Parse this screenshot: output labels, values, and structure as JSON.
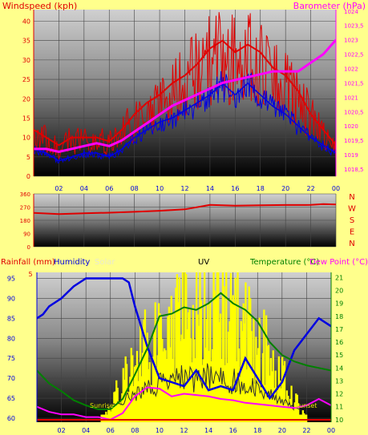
{
  "colors": {
    "background": "#ffff8c",
    "wind_speed": "#e00000",
    "wind_avg": "#0000e0",
    "barometer": "#ff00ff",
    "direction": "#e00000",
    "humidity": "#0000e0",
    "solar": "#ffff00",
    "temperature": "#008000",
    "dew_point": "#ff00ff",
    "rainfall": "#e00000",
    "uv": "#303030"
  },
  "chart_data": [
    {
      "type": "line",
      "title": "",
      "subtitle": "",
      "x_label": "",
      "ylabel_left": "Windspeed (kph)",
      "ylabel_right": "Barometer (hPa)",
      "x_ticks": [
        "02",
        "04",
        "06",
        "08",
        "10",
        "12",
        "14",
        "16",
        "18",
        "20",
        "22",
        "00"
      ],
      "x_range": [
        0,
        24
      ],
      "y_left_ticks": [
        "0",
        "5",
        "10",
        "15",
        "20",
        "25",
        "30",
        "35",
        "40"
      ],
      "y_left_range": [
        0,
        43
      ],
      "y_right_ticks": [
        "1018,5",
        "1019",
        "1019,5",
        "1020",
        "1020,5",
        "1021",
        "1021,5",
        "1022",
        "1022,5",
        "1023",
        "1023,5",
        "1024"
      ],
      "y_right_range": [
        1018.25,
        1024.05
      ],
      "series": [
        {
          "axis": "left",
          "x": [
            0,
            1,
            2,
            3,
            4,
            5,
            6,
            7,
            8,
            9,
            10,
            11,
            12,
            13,
            14,
            15,
            16,
            17,
            18,
            19,
            20,
            21,
            22,
            23,
            24
          ],
          "values": [
            12,
            10,
            8,
            10,
            10,
            10,
            9,
            12,
            16,
            19,
            21,
            24,
            26,
            29,
            33,
            35,
            32,
            34,
            32,
            28,
            26,
            22,
            16,
            12,
            8
          ]
        },
        {
          "axis": "left",
          "x": [
            0,
            1,
            2,
            3,
            4,
            5,
            6,
            7,
            8,
            9,
            10,
            11,
            12,
            13,
            14,
            15,
            16,
            17,
            18,
            19,
            20,
            21,
            22,
            23,
            24
          ],
          "values": [
            7,
            6,
            4,
            5,
            6,
            6,
            5,
            7,
            10,
            12,
            14,
            15,
            17,
            19,
            21,
            24,
            21,
            24,
            21,
            18,
            16,
            13,
            10,
            8,
            6
          ]
        },
        {
          "axis": "right",
          "x": [
            0,
            1,
            2,
            3,
            4,
            5,
            6,
            7,
            8,
            9,
            10,
            11,
            12,
            13,
            14,
            15,
            16,
            17,
            18,
            19,
            20,
            21,
            22,
            23,
            24
          ],
          "values": [
            1019.2,
            1019.2,
            1019.1,
            1019.2,
            1019.3,
            1019.4,
            1019.3,
            1019.5,
            1019.8,
            1020.1,
            1020.4,
            1020.7,
            1020.9,
            1021.1,
            1021.3,
            1021.5,
            1021.6,
            1021.7,
            1021.8,
            1021.9,
            1021.9,
            1021.9,
            1022.2,
            1022.5,
            1023.0
          ]
        }
      ]
    },
    {
      "type": "line",
      "ylabel_left": "",
      "direction_labels": [
        "N",
        "W",
        "S",
        "E",
        "N"
      ],
      "x_range": [
        0,
        24
      ],
      "y_left_ticks": [
        "0",
        "90",
        "180",
        "270",
        "360"
      ],
      "y_left_range": [
        0,
        360
      ],
      "series": [
        {
          "axis": "left",
          "x": [
            0,
            2,
            4,
            6,
            8,
            10,
            12,
            14,
            16,
            18,
            20,
            22,
            23,
            24
          ],
          "values": [
            230,
            222,
            228,
            232,
            238,
            245,
            255,
            285,
            280,
            282,
            284,
            285,
            290,
            288
          ]
        }
      ]
    },
    {
      "type": "line",
      "legend_top": [
        "Rainfall (mm)",
        "Humidity",
        "Solar",
        "UV",
        "Temperature (°C)",
        "Dew Point (°C)"
      ],
      "x_ticks": [
        "02",
        "04",
        "06",
        "08",
        "10",
        "12",
        "14",
        "16",
        "18",
        "20",
        "22",
        "00"
      ],
      "x_range": [
        0,
        24
      ],
      "y_left_ticks": [
        "60",
        "65",
        "70",
        "75",
        "80",
        "85",
        "90",
        "95"
      ],
      "y_left_range": [
        59,
        96.5
      ],
      "y_right_ticks": [
        "10",
        "11",
        "12",
        "13",
        "14",
        "15",
        "16",
        "17",
        "18",
        "19",
        "20",
        "21"
      ],
      "y_right_range": [
        9.8,
        21.4
      ],
      "rain_tick": "5",
      "inline_labels": [
        "Sunrise",
        "Sunset"
      ],
      "series": [
        {
          "axis": "left",
          "x": [
            0,
            0.5,
            1,
            2,
            3,
            4,
            5,
            6,
            7,
            7.5,
            8,
            9,
            10,
            11,
            12,
            13,
            14,
            15,
            16,
            17,
            18,
            19,
            20,
            21,
            22,
            23,
            24
          ],
          "values": [
            85,
            86,
            88,
            90,
            93,
            95,
            95,
            95,
            95,
            94,
            88,
            78,
            70,
            69,
            68,
            72,
            67,
            68,
            67,
            75,
            70,
            65,
            69,
            77,
            81,
            85,
            83
          ]
        },
        {
          "axis": "right",
          "x": [
            0,
            1,
            2,
            3,
            4,
            5,
            6,
            7,
            8,
            9,
            10,
            11,
            12,
            13,
            14,
            15,
            16,
            17,
            18,
            19,
            20,
            21,
            22,
            23,
            24
          ],
          "values": [
            13.8,
            12.8,
            12.2,
            11.5,
            11.1,
            10.8,
            10.8,
            11.6,
            13.5,
            15.5,
            18.0,
            18.2,
            18.7,
            18.5,
            19.0,
            19.8,
            19.0,
            18.5,
            17.6,
            16.0,
            15.0,
            14.5,
            14.2,
            14.0,
            13.8
          ]
        },
        {
          "axis": "right",
          "x": [
            0,
            1,
            2,
            3,
            4,
            5,
            6,
            7,
            8,
            9,
            10,
            11,
            12,
            13,
            14,
            15,
            16,
            17,
            18,
            19,
            20,
            21,
            22,
            23,
            24
          ],
          "values": [
            11.0,
            10.6,
            10.4,
            10.4,
            10.2,
            10.2,
            10.0,
            10.5,
            11.8,
            12.5,
            12.4,
            11.8,
            12.0,
            11.9,
            11.8,
            11.6,
            11.5,
            11.3,
            11.2,
            11.1,
            11.0,
            10.9,
            11.1,
            11.6,
            11.1
          ]
        }
      ]
    }
  ]
}
